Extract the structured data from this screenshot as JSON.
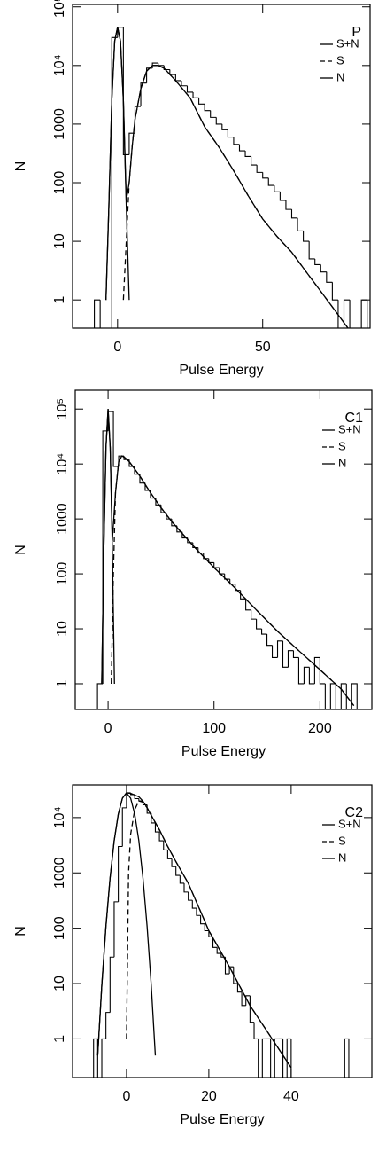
{
  "chart_data": [
    {
      "type": "histogram",
      "label": "P",
      "xlabel": "Pulse Energy",
      "ylabel": "N",
      "log_y": true,
      "legend": "upper right",
      "color": "#000000",
      "xlim": [
        -15.5,
        87
      ],
      "ylim": [
        0.33,
        110000
      ],
      "xticks": [
        0,
        50
      ],
      "yticks": [
        1,
        10,
        100,
        1000,
        {
          "value": 10000,
          "label": "10⁴"
        },
        {
          "value": 100000,
          "label": "10⁵"
        }
      ],
      "bins": [
        -10,
        -8,
        -6,
        -4,
        -2,
        0,
        2,
        4,
        6,
        8,
        10,
        12,
        14,
        16,
        18,
        20,
        22,
        24,
        26,
        28,
        30,
        32,
        34,
        36,
        38,
        40,
        42,
        44,
        46,
        48,
        50,
        52,
        54,
        56,
        58,
        60,
        62,
        64,
        66,
        68,
        70,
        72,
        74,
        76,
        78,
        80,
        82,
        84,
        86
      ],
      "counts": [
        0,
        1,
        0,
        0,
        30000,
        45000,
        300,
        700,
        2000,
        5000,
        9000,
        11000,
        10000,
        8500,
        7000,
        5500,
        4500,
        3500,
        2800,
        2200,
        1700,
        1300,
        1000,
        800,
        600,
        450,
        350,
        280,
        200,
        150,
        120,
        90,
        70,
        50,
        35,
        25,
        15,
        10,
        5,
        4,
        3,
        2,
        1,
        0,
        1,
        0,
        0,
        1
      ],
      "series": [
        {
          "name": "S+N",
          "color": "#000000",
          "dash": false,
          "x": [
            -4,
            -3,
            -2,
            -1,
            0,
            1,
            2,
            3,
            4,
            5,
            6,
            8,
            10,
            12,
            14,
            16,
            20,
            25,
            30,
            35,
            40,
            45,
            50,
            55,
            60,
            65,
            70,
            75,
            80
          ],
          "values": [
            1,
            40,
            2500,
            26000,
            45000,
            26000,
            2500,
            50,
            100,
            400,
            1200,
            4000,
            8000,
            10000,
            10000,
            9000,
            5500,
            2800,
            900,
            400,
            160,
            60,
            24,
            12,
            6.5,
            3,
            1.4,
            0.65,
            0.3
          ]
        },
        {
          "name": "S",
          "color": "#000000",
          "dash": true,
          "x": [
            2,
            3,
            4,
            5,
            6,
            8,
            10,
            12,
            14,
            16,
            20,
            25,
            30,
            35,
            40,
            45,
            50,
            55,
            60,
            65,
            70,
            75,
            80
          ],
          "values": [
            1,
            10,
            100,
            400,
            1200,
            4000,
            8000,
            10000,
            10000,
            9000,
            5500,
            2800,
            900,
            400,
            160,
            60,
            24,
            12,
            6.5,
            3,
            1.4,
            0.65,
            0.3
          ]
        },
        {
          "name": "N",
          "color": "#000000",
          "dash": false,
          "x": [
            -4,
            -3,
            -2,
            -1,
            0,
            1,
            2,
            3,
            4
          ],
          "values": [
            1,
            40,
            2500,
            26000,
            45000,
            26000,
            2500,
            40,
            1
          ]
        }
      ]
    },
    {
      "type": "histogram",
      "label": "C1",
      "xlabel": "Pulse Energy",
      "ylabel": "N",
      "log_y": true,
      "legend": "upper right",
      "color": "#000000",
      "xlim": [
        -31,
        249
      ],
      "ylim": [
        0.34,
        220000
      ],
      "xticks": [
        0,
        100,
        200
      ],
      "yticks": [
        1,
        10,
        100,
        1000,
        {
          "value": 10000,
          "label": "10⁴"
        },
        {
          "value": 100000,
          "label": "10⁵"
        }
      ],
      "bins": [
        -10,
        -5,
        0,
        5,
        10,
        15,
        20,
        25,
        30,
        35,
        40,
        45,
        50,
        55,
        60,
        65,
        70,
        75,
        80,
        85,
        90,
        95,
        100,
        105,
        110,
        115,
        120,
        125,
        130,
        135,
        140,
        145,
        150,
        155,
        160,
        165,
        170,
        175,
        180,
        185,
        190,
        195,
        200,
        205,
        210,
        215,
        220,
        225,
        230,
        235
      ],
      "counts": [
        1,
        40000,
        90000,
        9000,
        14000,
        12000,
        9000,
        6500,
        4500,
        3300,
        2400,
        1800,
        1300,
        1000,
        750,
        580,
        450,
        370,
        300,
        240,
        190,
        160,
        130,
        100,
        80,
        65,
        50,
        35,
        22,
        15,
        10,
        8,
        5,
        3,
        6,
        2,
        4,
        3,
        1,
        2,
        1,
        3,
        1,
        0,
        1,
        0,
        1,
        0,
        1
      ],
      "series": [
        {
          "name": "S+N",
          "color": "#000000",
          "dash": false,
          "x": [
            -6,
            -4,
            -2,
            0,
            2,
            4,
            7,
            10,
            13,
            16,
            20,
            30,
            40,
            50,
            60,
            80,
            100,
            120,
            140,
            160,
            180,
            200,
            220,
            232
          ],
          "values": [
            1,
            300,
            20000,
            100000,
            20000,
            400,
            3000,
            11000,
            14000,
            13000,
            11000,
            6000,
            3000,
            1600,
            900,
            330,
            130,
            55,
            22,
            9,
            4,
            1.8,
            0.8,
            0.4
          ]
        },
        {
          "name": "S",
          "color": "#000000",
          "dash": true,
          "x": [
            3,
            5,
            7,
            10,
            13,
            16,
            20,
            30,
            40,
            50,
            60,
            80,
            100,
            120,
            140,
            160,
            180,
            200,
            220,
            232
          ],
          "values": [
            1,
            100,
            3000,
            11000,
            14000,
            13000,
            11000,
            6000,
            3000,
            1600,
            900,
            330,
            130,
            55,
            22,
            9,
            4,
            1.8,
            0.8,
            0.4
          ]
        },
        {
          "name": "N",
          "color": "#000000",
          "dash": false,
          "x": [
            -6,
            -4,
            -2,
            0,
            2,
            4,
            6
          ],
          "values": [
            1,
            300,
            20000,
            100000,
            20000,
            300,
            1
          ]
        }
      ]
    },
    {
      "type": "histogram",
      "label": "C2",
      "xlabel": "Pulse Energy",
      "ylabel": "N",
      "log_y": true,
      "legend": "upper right",
      "color": "#000000",
      "xlim": [
        -13.1,
        59.6
      ],
      "ylim": [
        0.2,
        39000
      ],
      "xticks": [
        0,
        20,
        40
      ],
      "yticks": [
        1,
        10,
        100,
        1000,
        {
          "value": 10000,
          "label": "10⁴"
        }
      ],
      "bins": [
        -8,
        -7,
        -6,
        -5,
        -4,
        -3,
        -2,
        -1,
        0,
        1,
        2,
        3,
        4,
        5,
        6,
        7,
        8,
        9,
        10,
        11,
        12,
        13,
        14,
        15,
        16,
        17,
        18,
        19,
        20,
        21,
        22,
        23,
        24,
        25,
        26,
        27,
        28,
        29,
        30,
        31,
        32,
        33,
        34,
        35,
        36,
        37,
        38,
        39,
        40,
        41,
        42,
        43,
        44,
        45,
        46,
        47,
        48,
        49,
        50,
        51,
        52,
        53,
        54
      ],
      "counts": [
        1,
        0,
        1,
        3,
        30,
        300,
        3000,
        15000,
        28000,
        26000,
        22000,
        20000,
        17000,
        12000,
        8000,
        5500,
        3800,
        2600,
        1800,
        1300,
        900,
        650,
        450,
        320,
        230,
        170,
        120,
        90,
        70,
        45,
        35,
        30,
        15,
        20,
        10,
        7,
        4,
        6,
        2,
        1,
        0,
        1,
        1,
        0,
        1,
        1,
        0,
        1,
        0,
        0,
        0,
        0,
        0,
        0,
        0,
        0,
        0,
        0,
        0,
        0,
        0,
        1
      ],
      "series": [
        {
          "name": "S+N",
          "color": "#000000",
          "dash": false,
          "x": [
            -7,
            -6,
            -5,
            -4,
            -3,
            -2,
            -1,
            0,
            1,
            2,
            3,
            4,
            5,
            6,
            8,
            10,
            12,
            15,
            18,
            20,
            25,
            30,
            35,
            40
          ],
          "values": [
            0.5,
            9.4,
            108,
            800,
            3800,
            11500,
            22400,
            28000,
            27400,
            25500,
            23800,
            19800,
            15100,
            11000,
            6000,
            3000,
            1600,
            650,
            200,
            90,
            20,
            4,
            1.1,
            0.3
          ]
        },
        {
          "name": "S",
          "color": "#000000",
          "dash": true,
          "x": [
            0,
            0.5,
            1,
            2,
            3,
            4,
            5,
            6,
            8,
            10,
            12,
            15,
            18,
            20,
            25,
            30,
            35,
            40
          ],
          "values": [
            1,
            1000,
            5000,
            14000,
            20000,
            19000,
            15000,
            11000,
            6000,
            3000,
            1600,
            650,
            200,
            90,
            20,
            4,
            1.1,
            0.3
          ]
        },
        {
          "name": "N",
          "color": "#000000",
          "dash": false,
          "x": [
            -7,
            -6,
            -5,
            -4,
            -3,
            -2,
            -1,
            0,
            1,
            2,
            3,
            4,
            5,
            6,
            7
          ],
          "values": [
            0.5,
            9.4,
            108,
            800,
            3800,
            11500,
            22400,
            28000,
            22400,
            11500,
            3800,
            800,
            108,
            9.4,
            0.5
          ]
        }
      ]
    }
  ]
}
